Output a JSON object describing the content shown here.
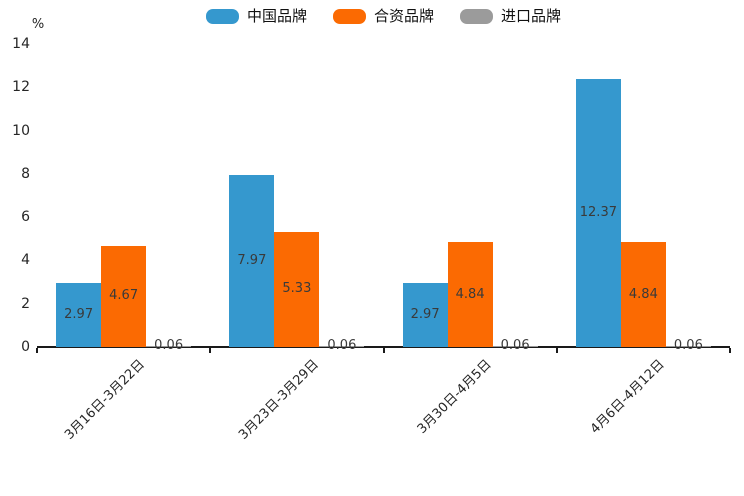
{
  "chart_data": {
    "type": "bar",
    "title": "",
    "unit_label": "%",
    "categories": [
      "3月16日-3月22日",
      "3月23日-3月29日",
      "3月30日-4月5日",
      "4月6日-4月12日"
    ],
    "series": [
      {
        "name": "中国品牌",
        "color": "#3598ce",
        "values": [
          2.97,
          7.97,
          2.97,
          12.37
        ]
      },
      {
        "name": "合资品牌",
        "color": "#fb6a02",
        "values": [
          4.67,
          5.33,
          4.84,
          4.84
        ]
      },
      {
        "name": "进口品牌",
        "color": "#9b9b9b",
        "values": [
          0.06,
          0.06,
          0.06,
          0.06
        ]
      }
    ],
    "y_ticks": [
      0,
      2,
      4,
      6,
      8,
      10,
      12,
      14
    ],
    "ylim": [
      0,
      14
    ],
    "grid": false,
    "legend_position": "top-center",
    "value_labels": true,
    "x_labels_rotation_deg": 45
  }
}
